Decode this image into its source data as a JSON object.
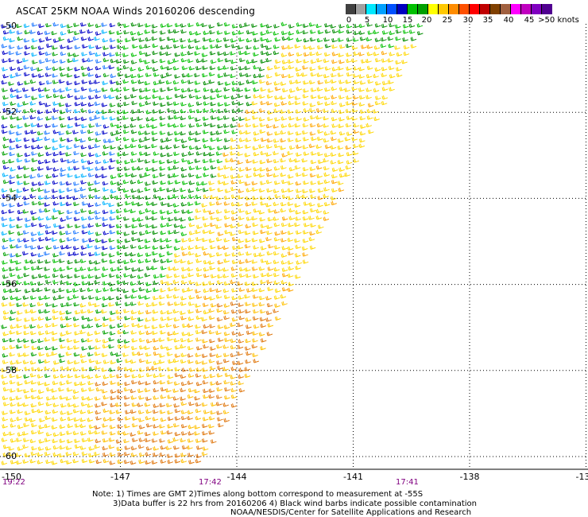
{
  "title": "ASCAT 25KM NOAA Winds 20160206 descending",
  "colorbar": {
    "colors": [
      "#404040",
      "#a0a0a0",
      "#00e8ff",
      "#00a0ff",
      "#0050ff",
      "#0000c0",
      "#00c000",
      "#00a000",
      "#ffff00",
      "#ffc800",
      "#ff8c00",
      "#ff5000",
      "#ff0000",
      "#c00000",
      "#804000",
      "#a06040",
      "#ff00ff",
      "#c000c0",
      "#8000c0",
      "#500090"
    ],
    "labels": [
      "0",
      "5",
      "10",
      "15",
      "20",
      "25",
      "30",
      "35",
      "40",
      "45",
      ">50 knots"
    ]
  },
  "axes": {
    "lon_ticks": [
      "-150",
      "-147",
      "-144",
      "-141",
      "-138",
      "-13"
    ],
    "lat_ticks": [
      "-50",
      "-52",
      "-54",
      "-56",
      "-58",
      "-60"
    ],
    "times": [
      {
        "text": "19:22",
        "at_lon": "-150"
      },
      {
        "text": "17:42",
        "at_lon": "-146"
      },
      {
        "text": "17:41",
        "at_lon": "-139.6"
      }
    ]
  },
  "notes": {
    "line1": "Note: 1) Times are GMT 2)Times along bottom correspond to measurement at -55S",
    "line2": "3)Data buffer is 22 hrs from 20160206 4) Black wind barbs indicate possible contamination",
    "line3": "NOAA/NESDIS/Center for Satellite Applications and Research"
  }
}
